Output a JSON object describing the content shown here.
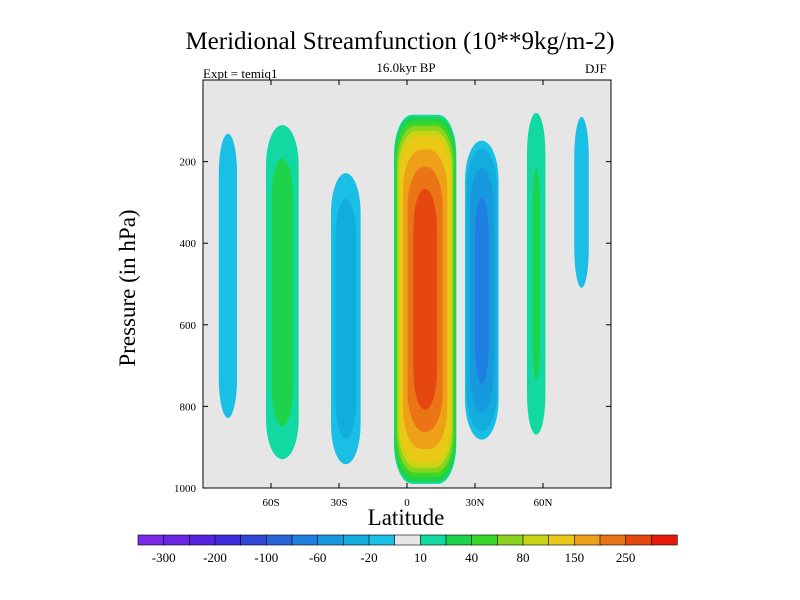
{
  "chart_data": {
    "type": "contour",
    "title": "Meridional Streamfunction (10**9kg/m-2)",
    "subtitle": "16.0kyr BP",
    "left_note": "Expt = temiq1",
    "right_note": "DJF",
    "xlabel": "Latitude",
    "ylabel": "Pressure (in hPa)",
    "xlim": [
      -90,
      90
    ],
    "ylim": [
      1000,
      0
    ],
    "x_ticks": [
      {
        "value": -60,
        "label": "60S"
      },
      {
        "value": -30,
        "label": "30S"
      },
      {
        "value": 0,
        "label": "0"
      },
      {
        "value": 30,
        "label": "30N"
      },
      {
        "value": 60,
        "label": "60N"
      }
    ],
    "y_ticks": [
      {
        "value": 200,
        "label": "200"
      },
      {
        "value": 400,
        "label": "400"
      },
      {
        "value": 600,
        "label": "600"
      },
      {
        "value": 800,
        "label": "800"
      },
      {
        "value": 1000,
        "label": "1000"
      }
    ],
    "background_color": "#e6e6e6",
    "levels": [
      -300,
      -250,
      -200,
      -150,
      -100,
      -80,
      -60,
      -40,
      -20,
      -10,
      10,
      20,
      40,
      60,
      80,
      100,
      150,
      200,
      250,
      300
    ],
    "colors": [
      "#7a2ae6",
      "#6a26e2",
      "#5722df",
      "#3f2adb",
      "#2f46d6",
      "#2a62d8",
      "#1f7fe0",
      "#1799e0",
      "#12addd",
      "#19bfe4",
      "#e6e6e6",
      "#12d9a2",
      "#1cd34b",
      "#3bd62a",
      "#8cd31d",
      "#c7d516",
      "#e9c816",
      "#eea018",
      "#ea7416",
      "#e6470f",
      "#e61a0c"
    ],
    "colorbar_labels": [
      {
        "value": -300,
        "label": "-300"
      },
      {
        "value": -200,
        "label": "-200"
      },
      {
        "value": -100,
        "label": "-100"
      },
      {
        "value": -60,
        "label": "-60"
      },
      {
        "value": -20,
        "label": "-20"
      },
      {
        "value": 10,
        "label": "10"
      },
      {
        "value": 40,
        "label": "40"
      },
      {
        "value": 80,
        "label": "80"
      },
      {
        "value": 150,
        "label": "150"
      },
      {
        "value": 250,
        "label": "250"
      }
    ],
    "cells": [
      {
        "name": "sh-polar-cell",
        "center_lat": -79,
        "lat_width": 14,
        "top_p": 0,
        "bottom_p": 960,
        "peak": -15
      },
      {
        "name": "sh-ferrel-cell",
        "center_lat": -55,
        "lat_width": 18,
        "top_p": 50,
        "bottom_p": 990,
        "peak": 28
      },
      {
        "name": "sh-hadley-cell",
        "center_lat": -27,
        "lat_width": 16,
        "top_p": 180,
        "bottom_p": 990,
        "peak": -30
      },
      {
        "name": "nh-hadley-cell",
        "center_lat": 8,
        "lat_width": 28,
        "top_p": 80,
        "bottom_p": 995,
        "peak": 290
      },
      {
        "name": "nh-subtropical-cell",
        "center_lat": 33,
        "lat_width": 16,
        "top_p": 130,
        "bottom_p": 900,
        "peak": -70
      },
      {
        "name": "nh-ferrel-cell",
        "center_lat": 57,
        "lat_width": 11,
        "top_p": 0,
        "bottom_p": 950,
        "peak": 22
      },
      {
        "name": "nh-polar-cell",
        "center_lat": 77,
        "lat_width": 12,
        "top_p": 0,
        "bottom_p": 600,
        "peak": -14
      }
    ]
  }
}
